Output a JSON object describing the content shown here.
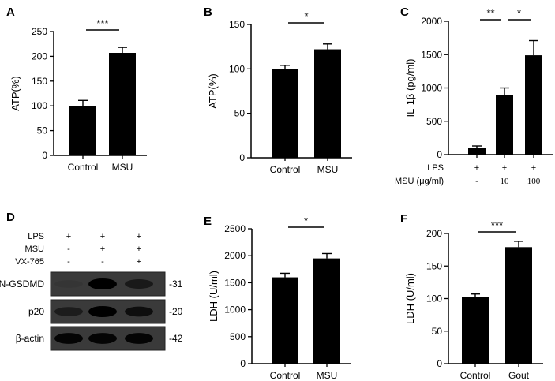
{
  "figure": {
    "bar_color": "#000000",
    "blot_background": "#3a3a3a"
  },
  "chart_data": [
    {
      "id": "A",
      "type": "bar",
      "panel_label": "A",
      "ylabel": "ATP(%)",
      "ylim": [
        0,
        250
      ],
      "yticks": [
        0,
        50,
        100,
        150,
        200,
        250
      ],
      "categories": [
        "Control",
        "MSU"
      ],
      "values": [
        100,
        207
      ],
      "errors": [
        11,
        11
      ],
      "significance": [
        {
          "from": 0,
          "to": 1,
          "label": "***"
        }
      ]
    },
    {
      "id": "B",
      "type": "bar",
      "panel_label": "B",
      "ylabel": "ATP(%)",
      "ylim": [
        0,
        150
      ],
      "yticks": [
        0,
        50,
        100,
        150
      ],
      "categories": [
        "Control",
        "MSU"
      ],
      "values": [
        100,
        122
      ],
      "errors": [
        4,
        6
      ],
      "significance": [
        {
          "from": 0,
          "to": 1,
          "label": "*"
        }
      ]
    },
    {
      "id": "C",
      "type": "bar",
      "panel_label": "C",
      "ylabel": "IL-1β (pg/ml)",
      "ylim": [
        0,
        2000
      ],
      "yticks": [
        0,
        500,
        1000,
        1500,
        2000
      ],
      "categories": [
        "",
        "",
        ""
      ],
      "values": [
        100,
        890,
        1490
      ],
      "errors": [
        30,
        110,
        220
      ],
      "significance": [
        {
          "from": 0,
          "to": 1,
          "label": "**"
        },
        {
          "from": 1,
          "to": 2,
          "label": "*"
        }
      ],
      "conditions": [
        {
          "label": "LPS",
          "values": [
            "+",
            "+",
            "+"
          ]
        },
        {
          "label": "MSU (μg/ml)",
          "values": [
            "-",
            "10",
            "100"
          ]
        }
      ]
    },
    {
      "id": "E",
      "type": "bar",
      "panel_label": "E",
      "ylabel": "LDH (U/ml)",
      "ylim": [
        0,
        2500
      ],
      "yticks": [
        0,
        500,
        1000,
        1500,
        2000,
        2500
      ],
      "categories": [
        "Control",
        "MSU"
      ],
      "values": [
        1600,
        1950
      ],
      "errors": [
        75,
        90
      ],
      "significance": [
        {
          "from": 0,
          "to": 1,
          "label": "*"
        }
      ]
    },
    {
      "id": "F",
      "type": "bar",
      "panel_label": "F",
      "ylabel": "LDH (U/ml)",
      "ylim": [
        0,
        200
      ],
      "yticks": [
        0,
        50,
        100,
        150,
        200
      ],
      "categories": [
        "Control",
        "Gout"
      ],
      "values": [
        103,
        179
      ],
      "errors": [
        4,
        9
      ],
      "significance": [
        {
          "from": 0,
          "to": 1,
          "label": "***"
        }
      ]
    }
  ],
  "blot": {
    "panel_label": "D",
    "conditions": [
      {
        "label": "LPS",
        "values": [
          "+",
          "+",
          "+"
        ]
      },
      {
        "label": "MSU",
        "values": [
          "-",
          "+",
          "+"
        ]
      },
      {
        "label": "VX-765",
        "values": [
          "-",
          "-",
          "+"
        ]
      }
    ],
    "rows": [
      {
        "name": "N-GSDMD",
        "size": "-31",
        "intensity": [
          0.25,
          1.0,
          0.65
        ]
      },
      {
        "name": "p20",
        "size": "-20",
        "intensity": [
          0.6,
          1.0,
          0.8
        ]
      },
      {
        "name": "β-actin",
        "size": "-42",
        "intensity": [
          0.95,
          0.95,
          0.95
        ]
      }
    ]
  }
}
